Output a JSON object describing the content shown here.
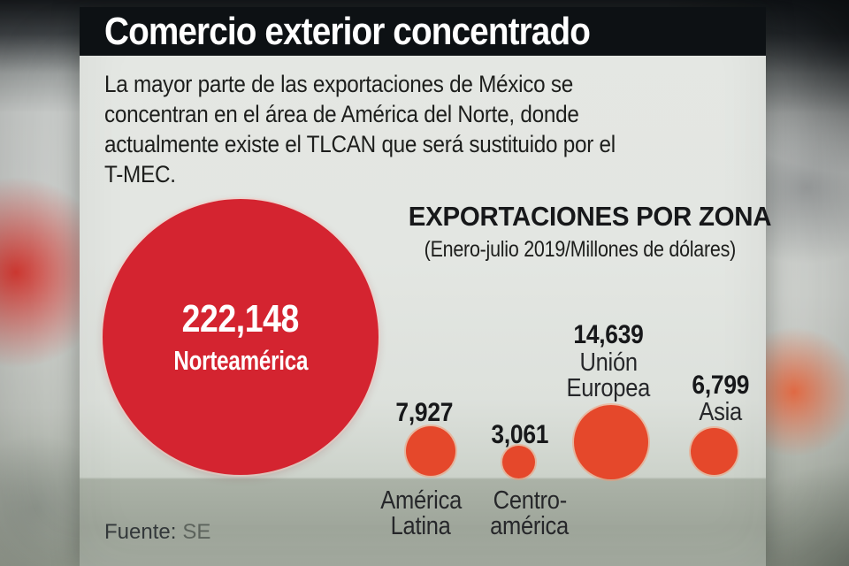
{
  "colors": {
    "accent_red": "#d42430",
    "bubble_orange": "#e5482b",
    "title_bar_bg": "#0d1114",
    "panel_bg": "#e2e5e1",
    "footer_strip": "#a4aba0",
    "text_dark": "#1d1e1c"
  },
  "header": {
    "title": "Comercio exterior concentrado"
  },
  "intro": {
    "lines": [
      "La mayor parte de las exportaciones de México se",
      "concentran en el área de América del Norte, donde",
      "actualmente existe el TLCAN que será sustituido por el",
      "T-MEC."
    ]
  },
  "chart": {
    "title": "EXPORTACIONES POR ZONA",
    "subtitle": "(Enero-julio 2019/Millones de dólares)",
    "bubbles": [
      {
        "region": "Norteamérica",
        "value_label": "222,148",
        "name_lines": [
          "Norteamérica"
        ]
      },
      {
        "region": "América Latina",
        "value_label": "7,927",
        "name_lines": [
          "América",
          "Latina"
        ]
      },
      {
        "region": "Centroamérica",
        "value_label": "3,061",
        "name_lines": [
          "Centro-",
          "américa"
        ]
      },
      {
        "region": "Unión Europea",
        "value_label": "14,639",
        "name_lines": [
          "Unión",
          "Europea"
        ]
      },
      {
        "region": "Asia",
        "value_label": "6,799",
        "name_lines": [
          "Asia"
        ]
      }
    ]
  },
  "source": {
    "label": "Fuente:",
    "value": "SE"
  },
  "chart_data": {
    "type": "bubble",
    "title": "EXPORTACIONES POR ZONA",
    "subtitle": "(Enero-julio 2019/Millones de dólares)",
    "period": "Enero-julio 2019",
    "unit": "Millones de dólares",
    "categories": [
      "Norteamérica",
      "América Latina",
      "Centroamérica",
      "Unión Europea",
      "Asia"
    ],
    "values": [
      222148,
      7927,
      3061,
      14639,
      6799
    ],
    "value_labels": [
      "222,148",
      "7,927",
      "3,061",
      "14,639",
      "6,799"
    ],
    "layout": "circle areas proportional to values, circles aligned on a common baseline",
    "colors": {
      "Norteamérica": "#d42430",
      "others": "#e5482b"
    }
  }
}
